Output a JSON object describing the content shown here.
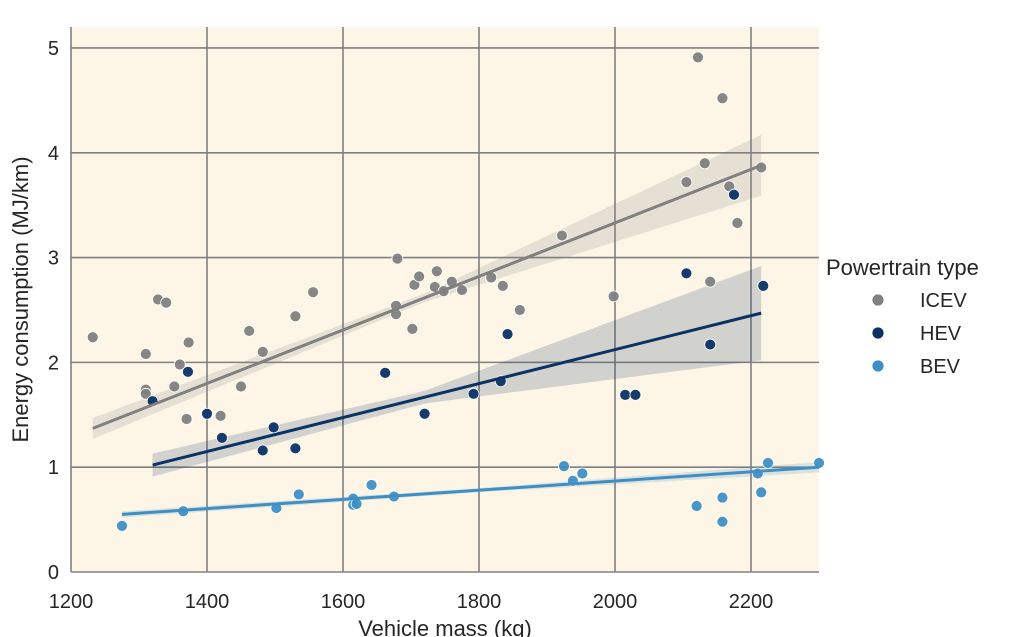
{
  "chart_data": {
    "type": "scatter",
    "xlabel": "Vehicle mass (kg)",
    "ylabel": "Energy consumption (MJ/km)",
    "xlim": [
      1200,
      2300
    ],
    "ylim": [
      0,
      5.2
    ],
    "xticks": [
      1200,
      1400,
      1600,
      1800,
      2000,
      2200
    ],
    "yticks": [
      0,
      1,
      2,
      3,
      4,
      5
    ],
    "grid": true,
    "background_color": "#fdf5e6",
    "grid_color": "#808080",
    "legend": {
      "title": "Powertrain type",
      "placement": "right"
    },
    "series": [
      {
        "name": "ICEV",
        "color": "#808080",
        "points": [
          [
            1232,
            2.24
          ],
          [
            1310,
            2.08
          ],
          [
            1310,
            1.74
          ],
          [
            1310,
            1.7
          ],
          [
            1328,
            2.6
          ],
          [
            1340,
            2.57
          ],
          [
            1352,
            1.77
          ],
          [
            1360,
            1.98
          ],
          [
            1370,
            1.46
          ],
          [
            1373,
            2.19
          ],
          [
            1420,
            1.49
          ],
          [
            1450,
            1.77
          ],
          [
            1462,
            2.3
          ],
          [
            1482,
            2.1
          ],
          [
            1530,
            2.44
          ],
          [
            1556,
            2.67
          ],
          [
            1678,
            2.54
          ],
          [
            1678,
            2.46
          ],
          [
            1680,
            2.99
          ],
          [
            1702,
            2.32
          ],
          [
            1705,
            2.74
          ],
          [
            1712,
            2.82
          ],
          [
            1735,
            2.72
          ],
          [
            1738,
            2.87
          ],
          [
            1748,
            2.68
          ],
          [
            1760,
            2.77
          ],
          [
            1775,
            2.69
          ],
          [
            1818,
            2.81
          ],
          [
            1835,
            2.73
          ],
          [
            1860,
            2.5
          ],
          [
            1922,
            3.21
          ],
          [
            1998,
            2.63
          ],
          [
            2105,
            3.72
          ],
          [
            2122,
            4.91
          ],
          [
            2132,
            3.9
          ],
          [
            2140,
            2.77
          ],
          [
            2158,
            4.52
          ],
          [
            2168,
            3.68
          ],
          [
            2180,
            3.33
          ],
          [
            2215,
            3.86
          ]
        ],
        "fit": {
          "x": [
            1232,
            2215
          ],
          "y": [
            1.37,
            3.88
          ]
        },
        "band_half_width": {
          "x": [
            1232,
            1720,
            2215
          ],
          "y": [
            0.1,
            0.04,
            0.29
          ]
        }
      },
      {
        "name": "HEV",
        "color": "#0b3265",
        "points": [
          [
            1320,
            1.63
          ],
          [
            1372,
            1.91
          ],
          [
            1400,
            1.51
          ],
          [
            1422,
            1.28
          ],
          [
            1482,
            1.16
          ],
          [
            1498,
            1.38
          ],
          [
            1530,
            1.18
          ],
          [
            1662,
            1.9
          ],
          [
            1720,
            1.51
          ],
          [
            1792,
            1.7
          ],
          [
            1832,
            1.82
          ],
          [
            1842,
            2.27
          ],
          [
            2015,
            1.69
          ],
          [
            2030,
            1.69
          ],
          [
            2105,
            2.85
          ],
          [
            2140,
            2.17
          ],
          [
            2175,
            3.6
          ],
          [
            2218,
            2.73
          ]
        ],
        "fit": {
          "x": [
            1320,
            2215
          ],
          "y": [
            1.02,
            2.47
          ]
        },
        "band_half_width": {
          "x": [
            1320,
            1720,
            2215
          ],
          "y": [
            0.11,
            0.06,
            0.45
          ]
        }
      },
      {
        "name": "BEV",
        "color": "#3f8fc4",
        "points": [
          [
            1275,
            0.44
          ],
          [
            1365,
            0.58
          ],
          [
            1502,
            0.61
          ],
          [
            1535,
            0.74
          ],
          [
            1615,
            0.7
          ],
          [
            1615,
            0.64
          ],
          [
            1620,
            0.65
          ],
          [
            1642,
            0.83
          ],
          [
            1675,
            0.72
          ],
          [
            1925,
            1.01
          ],
          [
            1938,
            0.87
          ],
          [
            1952,
            0.94
          ],
          [
            2120,
            0.63
          ],
          [
            2158,
            0.71
          ],
          [
            2158,
            0.48
          ],
          [
            2210,
            0.94
          ],
          [
            2215,
            0.76
          ],
          [
            2225,
            1.04
          ],
          [
            2300,
            1.04
          ]
        ],
        "fit": {
          "x": [
            1275,
            2300
          ],
          "y": [
            0.55,
            1.0
          ]
        },
        "band_half_width": {
          "x": [
            1275,
            1800,
            2300
          ],
          "y": [
            0.03,
            0.02,
            0.05
          ]
        }
      }
    ]
  }
}
